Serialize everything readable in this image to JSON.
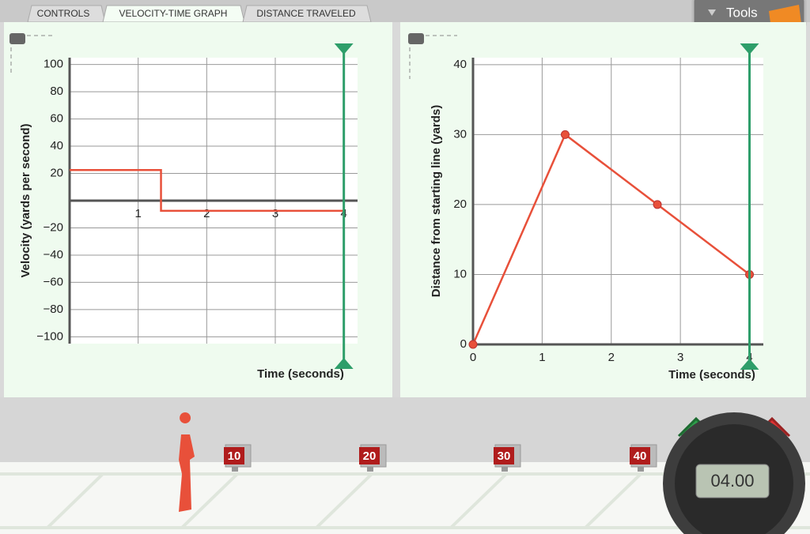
{
  "tabs": [
    "CONTROLS",
    "VELOCITY-TIME GRAPH",
    "DISTANCE TRAVELED"
  ],
  "tools_label": "Tools",
  "track_markers": [
    "10",
    "20",
    "30",
    "40"
  ],
  "stopwatch": "04.00",
  "chart_data": [
    {
      "type": "line",
      "y_label": "Velocity (yards per second)",
      "x_label": "Time (seconds)",
      "x": [
        0,
        1.333,
        1.333,
        4
      ],
      "values": [
        22.5,
        22.5,
        -7.5,
        -7.5
      ],
      "color": "#e8503a",
      "xlim": [
        0,
        4.2
      ],
      "ylim": [
        -105,
        105
      ],
      "xticks": [
        1,
        2,
        3,
        4
      ],
      "yticks": [
        {
          "value": -100,
          "label": "−100"
        },
        {
          "value": -80,
          "label": "−80"
        },
        {
          "value": -60,
          "label": "−60"
        },
        {
          "value": -40,
          "label": "−40"
        },
        {
          "value": -20,
          "label": "−20"
        },
        20,
        40,
        60,
        80,
        100
      ],
      "grid": true,
      "markers": false,
      "cursor_x": 4,
      "cursor_color": "#2e9e6a"
    },
    {
      "type": "line",
      "y_label": "Distance from starting line (yards)",
      "x_label": "Time (seconds)",
      "x": [
        0,
        1.333,
        2.667,
        4
      ],
      "values": [
        0,
        30,
        20,
        10
      ],
      "color": "#e8503a",
      "xlim": [
        0,
        4.2
      ],
      "ylim": [
        0,
        41
      ],
      "xticks": [
        0,
        1,
        2,
        3,
        4
      ],
      "yticks": [
        0,
        10,
        20,
        30,
        40
      ],
      "grid": true,
      "markers": true,
      "cursor_x": 4,
      "cursor_color": "#2e9e6a"
    }
  ]
}
